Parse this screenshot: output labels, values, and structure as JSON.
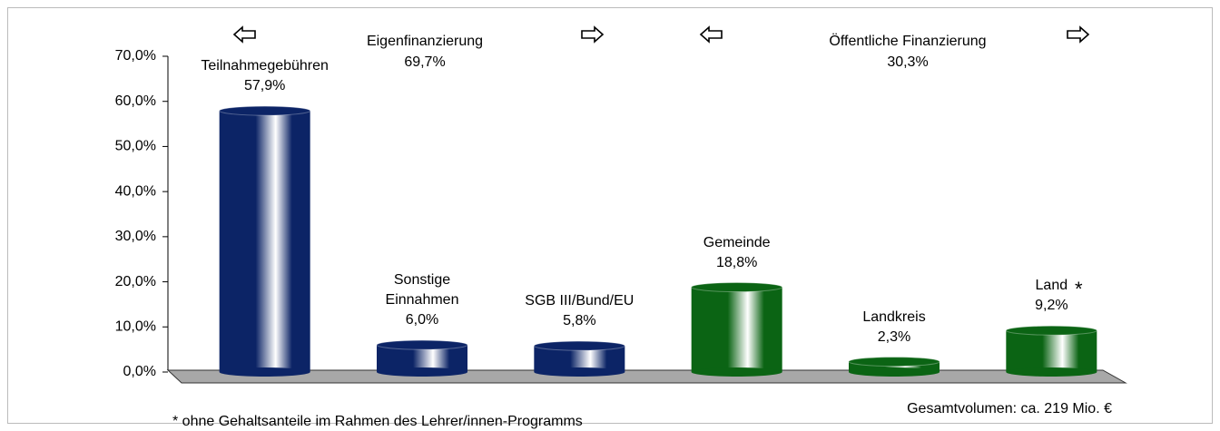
{
  "chart_data": {
    "type": "bar3d",
    "categories": [
      "Teilnahmegebühren",
      "Sonstige\nEinnahmen",
      "SGB III/Bund/EU",
      "Gemeinde",
      "Landkreis",
      "Land"
    ],
    "values": [
      57.9,
      6.0,
      5.8,
      18.8,
      2.3,
      9.2
    ],
    "value_labels": [
      "57,9%",
      "6,0%",
      "5,8%",
      "18,8%",
      "2,3%",
      "9,2%"
    ],
    "colors": [
      "#0c2466",
      "#0c2466",
      "#0c2466",
      "#0b6414",
      "#0b6414",
      "#0b6414"
    ],
    "ylim": [
      0,
      70
    ],
    "yticks": [
      {
        "value": 0,
        "label": "0,0%"
      },
      {
        "value": 10,
        "label": "10,0%"
      },
      {
        "value": 20,
        "label": "20,0%"
      },
      {
        "value": 30,
        "label": "30,0%"
      },
      {
        "value": 40,
        "label": "40,0%"
      },
      {
        "value": 50,
        "label": "50,0%"
      },
      {
        "value": 60,
        "label": "60,0%"
      },
      {
        "value": 70,
        "label": "70,0%"
      }
    ],
    "groups": [
      {
        "name": "Eigenfinanzierung",
        "share": "69,7%"
      },
      {
        "name": "Öffentliche Finanzierung",
        "share": "30,3%"
      }
    ],
    "footnote_mark": "*",
    "total_note": "Gesamtvolumen: ca. 219 Mio. €",
    "footnote": "*  ohne Gehaltsanteile im Rahmen des Lehrer/innen-Programms"
  }
}
